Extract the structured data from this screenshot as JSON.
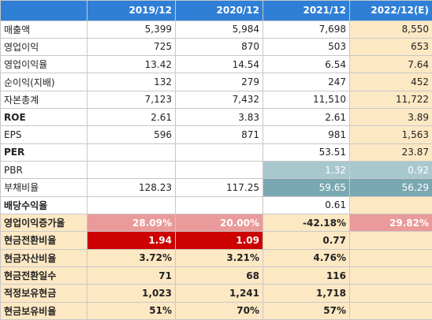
{
  "header": {
    "columns": [
      "2019/12",
      "2020/12",
      "2021/12",
      "2022/12(E)"
    ]
  },
  "rows": [
    {
      "label": "매출액",
      "cells": [
        "5,399",
        "5,984",
        "7,698",
        "8,550"
      ]
    },
    {
      "label": "영업이익",
      "cells": [
        "725",
        "870",
        "503",
        "653"
      ]
    },
    {
      "label": "영업이익율",
      "cells": [
        "13.42",
        "14.54",
        "6.54",
        "7.64"
      ]
    },
    {
      "label": "순이익(지배)",
      "cells": [
        "132",
        "279",
        "247",
        "452"
      ]
    },
    {
      "label": "자본총계",
      "cells": [
        "7,123",
        "7,432",
        "11,510",
        "11,722"
      ]
    },
    {
      "label": "ROE",
      "cells": [
        "2.61",
        "3.83",
        "2.61",
        "3.89"
      ]
    },
    {
      "label": "EPS",
      "cells": [
        "596",
        "871",
        "981",
        "1,563"
      ]
    },
    {
      "label": "PER",
      "cells": [
        null,
        null,
        "53.51",
        "23.87"
      ]
    },
    {
      "label": "PBR",
      "cells": [
        null,
        null,
        "1.32",
        "0.92"
      ]
    },
    {
      "label": "부채비율",
      "cells": [
        "128.23",
        "117.25",
        "59.65",
        "56.29"
      ]
    },
    {
      "label": "배당수익율",
      "cells": [
        null,
        null,
        "0.61",
        null
      ]
    },
    {
      "label": "영업이익증가율",
      "cells": [
        "28.09%",
        "20.00%",
        "-42.18%",
        "29.82%"
      ]
    },
    {
      "label": "현금전환비율",
      "cells": [
        "1.94",
        "1.09",
        "0.77",
        null
      ]
    },
    {
      "label": "현금자산비율",
      "cells": [
        "3.72%",
        "3.21%",
        "4.76%",
        null
      ]
    },
    {
      "label": "현금전환일수",
      "cells": [
        "71",
        "68",
        "116",
        null
      ]
    },
    {
      "label": "적정보유현금",
      "cells": [
        "1,023",
        "1,241",
        "1,718",
        null
      ]
    },
    {
      "label": "현금보유비율",
      "cells": [
        "51%",
        "70%",
        "57%",
        null
      ]
    }
  ]
}
